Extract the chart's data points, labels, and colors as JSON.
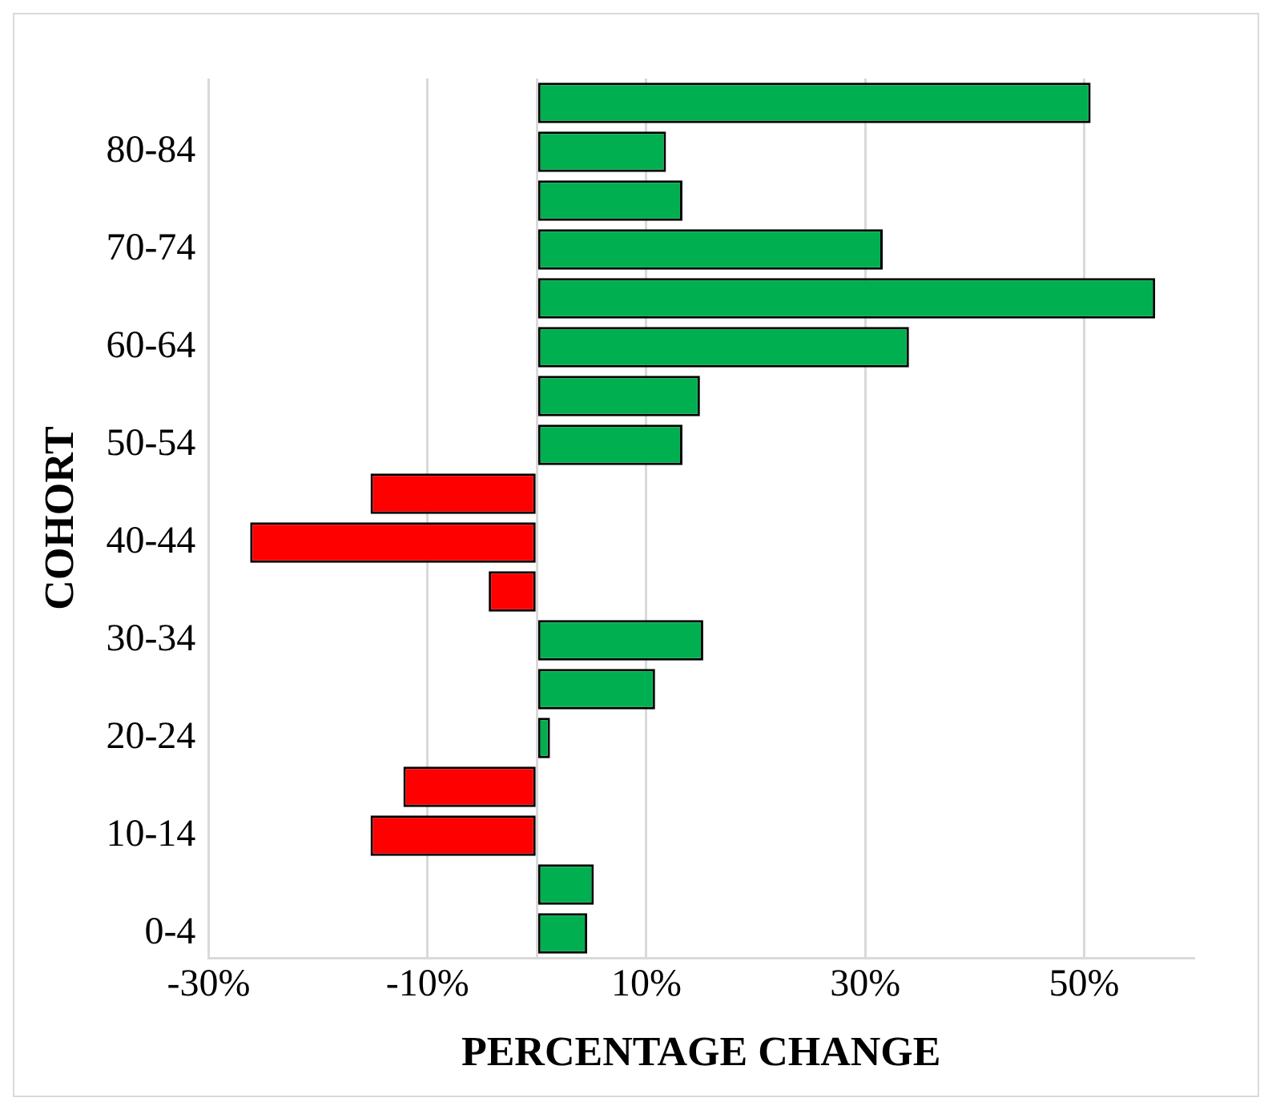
{
  "chart_data": {
    "type": "bar",
    "orientation": "horizontal",
    "xlabel": "PERCENTAGE CHANGE",
    "ylabel": "COHORT",
    "categories": [
      null,
      "80-84",
      null,
      "70-74",
      null,
      "60-64",
      null,
      "50-54",
      null,
      "40-44",
      null,
      "30-34",
      null,
      "20-24",
      null,
      "10-14",
      null,
      "0-4"
    ],
    "values": [
      50.6,
      11.8,
      13.3,
      31.6,
      56.5,
      34.0,
      14.9,
      13.3,
      -15.2,
      -26.2,
      -4.4,
      15.2,
      10.8,
      1.2,
      -12.2,
      -15.2,
      5.2,
      4.6
    ],
    "colors": [
      "#00b050",
      "#00b050",
      "#00b050",
      "#00b050",
      "#00b050",
      "#00b050",
      "#00b050",
      "#00b050",
      "#ff0000",
      "#ff0000",
      "#ff0000",
      "#00b050",
      "#00b050",
      "#00b050",
      "#ff0000",
      "#ff0000",
      "#00b050",
      "#00b050"
    ],
    "xlim": [
      -30,
      60
    ],
    "xticks": [
      {
        "value": -30,
        "label": "-30%"
      },
      {
        "value": -10,
        "label": "-10%"
      },
      {
        "value": 0,
        "label": null
      },
      {
        "value": 10,
        "label": "10%"
      },
      {
        "value": 30,
        "label": "30%"
      },
      {
        "value": 50,
        "label": "50%"
      }
    ],
    "grid": "x",
    "legend": false
  }
}
